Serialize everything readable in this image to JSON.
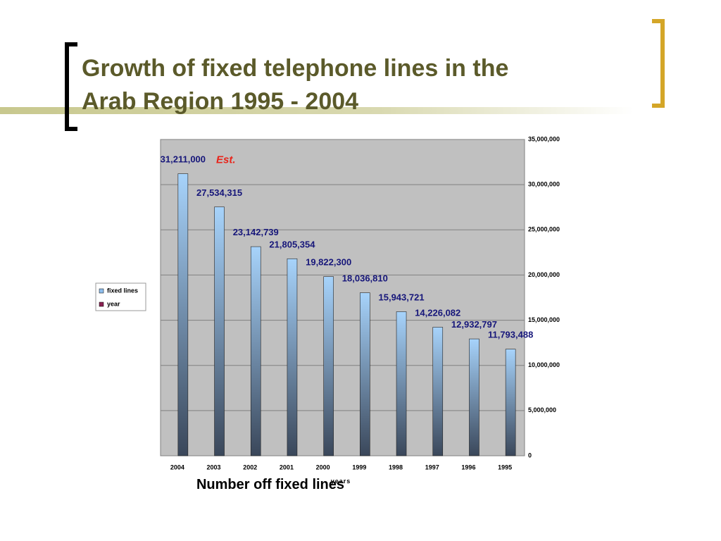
{
  "title_lines": [
    "Growth of fixed telephone lines in the",
    "Arab Region 1995 - 2004"
  ],
  "caption": "Number off fixed lines",
  "chart_data": {
    "type": "bar",
    "categories": [
      "2004",
      "2003",
      "2002",
      "2001",
      "2000",
      "1999",
      "1998",
      "1997",
      "1996",
      "1995"
    ],
    "series": [
      {
        "name": "fixed lines",
        "color": "#8fbfee",
        "values": [
          31211000,
          27534315,
          23142739,
          21805354,
          19822300,
          18036810,
          15943721,
          14226082,
          12932797,
          11793488
        ],
        "value_labels": [
          "31,211,000",
          "27,534,315",
          "23,142,739",
          "21,805,354",
          "19,822,300",
          "18,036,810",
          "15,943,721",
          "14,226,082",
          "12,932,797",
          "11,793,488"
        ]
      }
    ],
    "legend_entries": [
      {
        "name": "fixed lines",
        "color": "#8fbfee"
      },
      {
        "name": "year",
        "color": "#8b2252"
      }
    ],
    "annotation": "Est.",
    "x_label": "years",
    "ylim": [
      0,
      35000000
    ],
    "yticks": [
      0,
      {
        "value": 5000000,
        "label": "5,000,000"
      },
      {
        "value": 10000000,
        "label": "10,000,000"
      },
      {
        "value": 15000000,
        "label": "15,000,000"
      },
      {
        "value": 20000000,
        "label": "20,000,000"
      },
      {
        "value": 25000000,
        "label": "25,000,000"
      },
      {
        "value": 30000000,
        "label": "30,000,000"
      },
      {
        "value": 35000000,
        "label": "35,000,000"
      }
    ],
    "y_axis_side": "right",
    "grid": true
  }
}
